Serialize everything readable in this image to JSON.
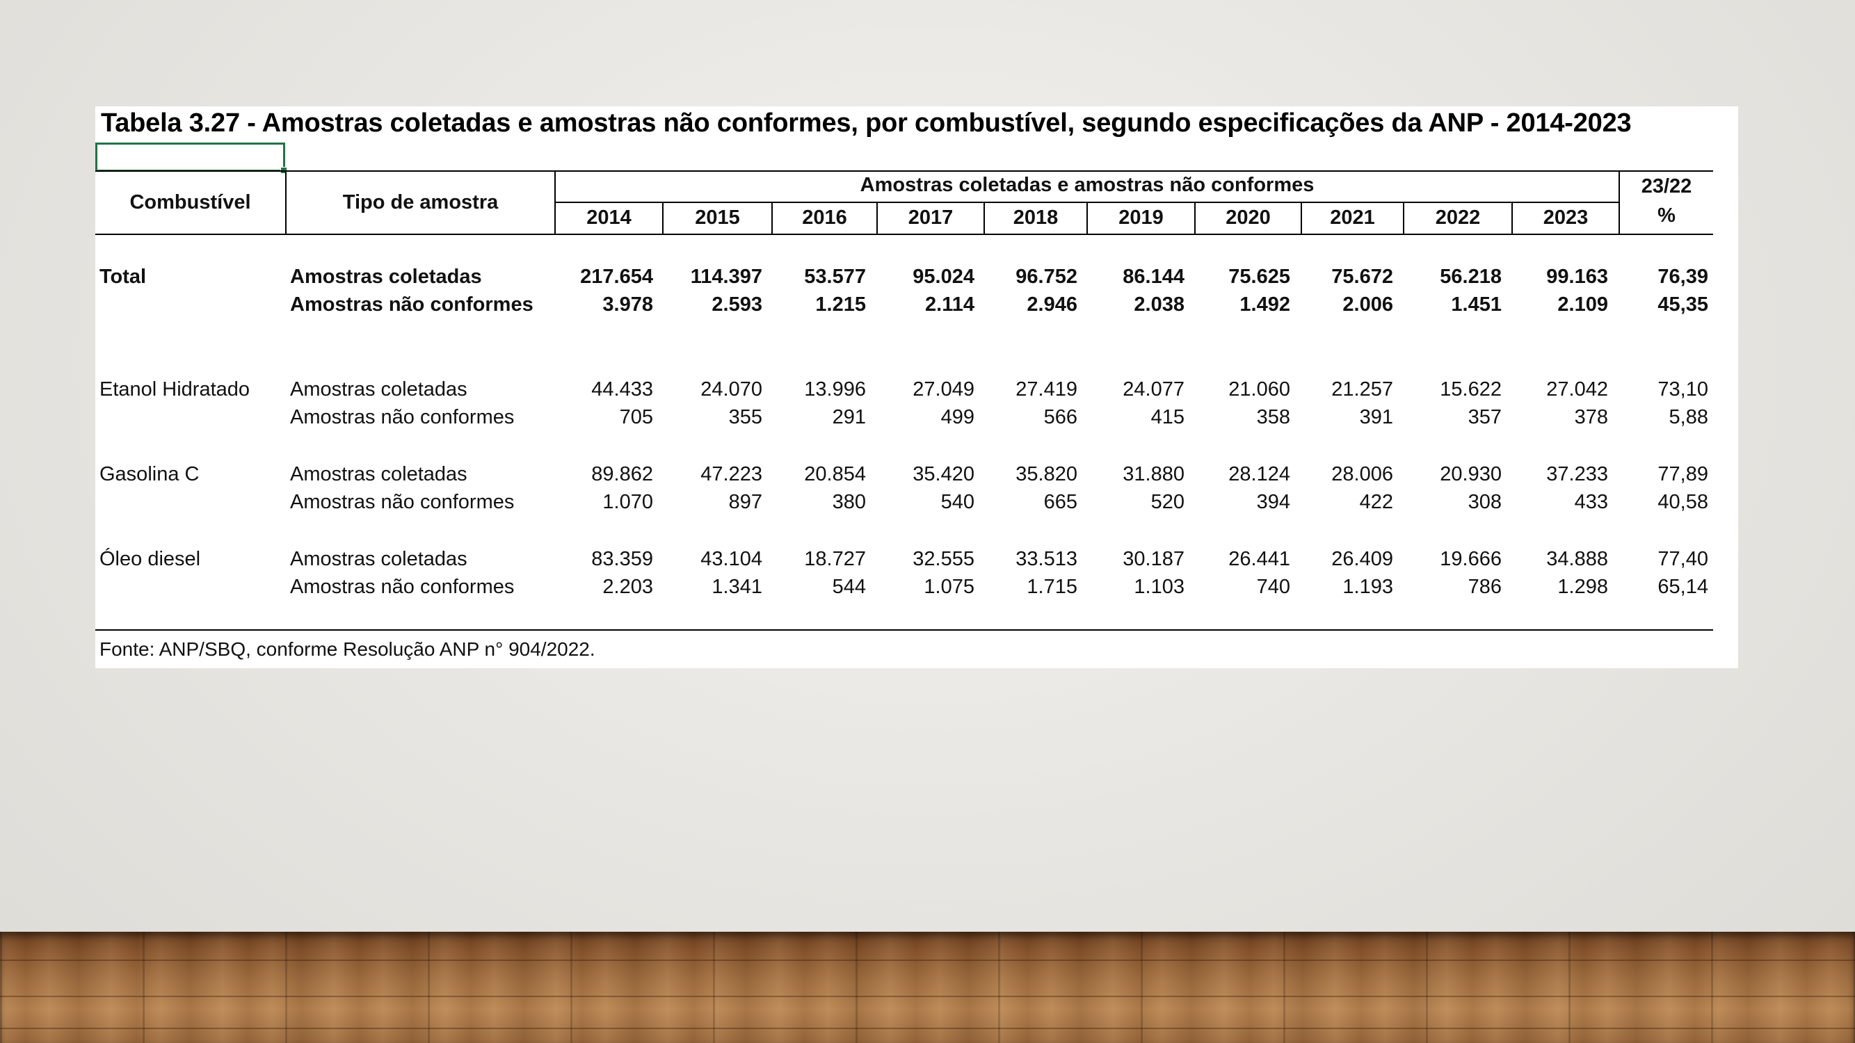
{
  "title": "Tabela 3.27 - Amostras coletadas e amostras não conformes, por combustível, segundo especificações da ANP - 2014-2023",
  "header": {
    "col_fuel": "Combustível",
    "col_type": "Tipo de amostra",
    "group": "Amostras coletadas e amostras não conformes",
    "ratio_line1": "23/22",
    "ratio_line2": "%",
    "years": [
      "2014",
      "2015",
      "2016",
      "2017",
      "2018",
      "2019",
      "2020",
      "2021",
      "2022",
      "2023"
    ]
  },
  "groups": [
    {
      "fuel": "Total",
      "bold": true,
      "rows": [
        {
          "type": "Amostras coletadas",
          "values": [
            "217.654",
            "114.397",
            "53.577",
            "95.024",
            "96.752",
            "86.144",
            "75.625",
            "75.672",
            "56.218",
            "99.163"
          ],
          "ratio": "76,39"
        },
        {
          "type": "Amostras não conformes",
          "values": [
            "3.978",
            "2.593",
            "1.215",
            "2.114",
            "2.946",
            "2.038",
            "1.492",
            "2.006",
            "1.451",
            "2.109"
          ],
          "ratio": "45,35"
        }
      ]
    },
    {
      "fuel": "Etanol Hidratado",
      "bold": false,
      "rows": [
        {
          "type": "Amostras coletadas",
          "values": [
            "44.433",
            "24.070",
            "13.996",
            "27.049",
            "27.419",
            "24.077",
            "21.060",
            "21.257",
            "15.622",
            "27.042"
          ],
          "ratio": "73,10"
        },
        {
          "type": "Amostras não conformes",
          "values": [
            "705",
            "355",
            "291",
            "499",
            "566",
            "415",
            "358",
            "391",
            "357",
            "378"
          ],
          "ratio": "5,88"
        }
      ]
    },
    {
      "fuel": "Gasolina C",
      "bold": false,
      "rows": [
        {
          "type": "Amostras coletadas",
          "values": [
            "89.862",
            "47.223",
            "20.854",
            "35.420",
            "35.820",
            "31.880",
            "28.124",
            "28.006",
            "20.930",
            "37.233"
          ],
          "ratio": "77,89"
        },
        {
          "type": "Amostras não conformes",
          "values": [
            "1.070",
            "897",
            "380",
            "540",
            "665",
            "520",
            "394",
            "422",
            "308",
            "433"
          ],
          "ratio": "40,58"
        }
      ]
    },
    {
      "fuel": "Óleo diesel",
      "bold": false,
      "rows": [
        {
          "type": "Amostras coletadas",
          "values": [
            "83.359",
            "43.104",
            "18.727",
            "32.555",
            "33.513",
            "30.187",
            "26.441",
            "26.409",
            "19.666",
            "34.888"
          ],
          "ratio": "77,40"
        },
        {
          "type": "Amostras não conformes",
          "values": [
            "2.203",
            "1.341",
            "544",
            "1.075",
            "1.715",
            "1.103",
            "740",
            "1.193",
            "786",
            "1.298"
          ],
          "ratio": "65,14"
        }
      ]
    }
  ],
  "source": "Fonte: ANP/SBQ, conforme Resolução ANP n° 904/2022."
}
